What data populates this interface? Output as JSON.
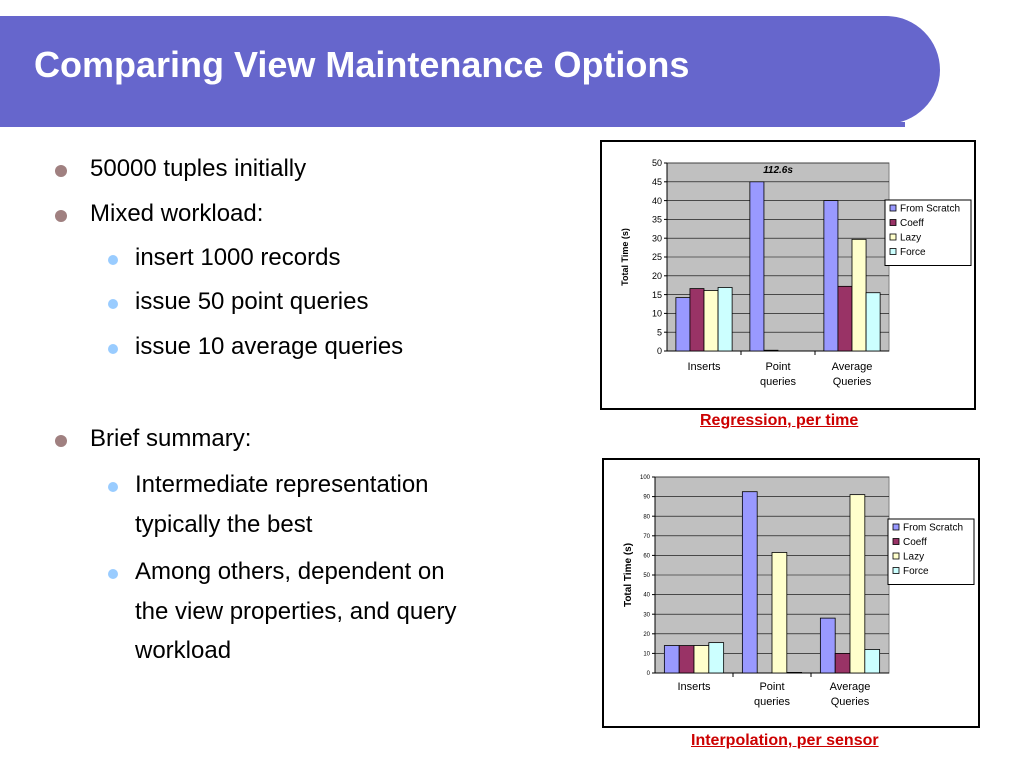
{
  "slide": {
    "title": "Comparing View Maintenance Options",
    "bullets": [
      {
        "level": 1,
        "text": "50000 tuples initially"
      },
      {
        "level": 1,
        "text": "Mixed workload:"
      },
      {
        "level": 2,
        "text": "insert 1000 records"
      },
      {
        "level": 2,
        "text": "issue 50 point queries"
      },
      {
        "level": 2,
        "text": "issue 10 average queries"
      },
      {
        "level": 1,
        "text": "Brief summary:"
      },
      {
        "level": 2,
        "text": "Intermediate representation"
      },
      {
        "level": 2,
        "text": "typically the best",
        "continuation": true
      },
      {
        "level": 2,
        "text": "Among others, dependent on"
      },
      {
        "level": 2,
        "text": "the view properties, and query",
        "continuation": true
      },
      {
        "level": 2,
        "text": "workload",
        "continuation": true
      }
    ],
    "captions": [
      "Regression, per time",
      "Interpolation, per sensor"
    ]
  },
  "chart_data": [
    {
      "type": "bar",
      "title": "",
      "xlabel": "",
      "ylabel": "Total Time (s)",
      "ylim": [
        0,
        50
      ],
      "ytick_step": 5,
      "categories": [
        [
          "Inserts"
        ],
        [
          "Point",
          "queries"
        ],
        [
          "Average",
          "Queries"
        ]
      ],
      "series": [
        {
          "name": "From Scratch",
          "color": "#9999ff",
          "values": [
            14.2,
            45,
            40
          ]
        },
        {
          "name": "Coeff",
          "color": "#993366",
          "values": [
            16.6,
            0.2,
            17.2
          ]
        },
        {
          "name": "Lazy",
          "color": "#ffffcc",
          "values": [
            16.1,
            0,
            29.7
          ]
        },
        {
          "name": "Force",
          "color": "#ccffff",
          "values": [
            16.9,
            0,
            15.5
          ]
        }
      ],
      "annotations": [
        "112.6s"
      ],
      "legend": "right",
      "grid": true,
      "plot_background": "#c0c0c0"
    },
    {
      "type": "bar",
      "title": "",
      "xlabel": "",
      "ylabel": "Total Time (s)",
      "ylim": [
        0,
        100
      ],
      "ytick_step": 10,
      "categories": [
        [
          "Inserts"
        ],
        [
          "Point",
          "queries"
        ],
        [
          "Average",
          "Queries"
        ]
      ],
      "series": [
        {
          "name": "From Scratch",
          "color": "#9999ff",
          "values": [
            14,
            92.5,
            28
          ]
        },
        {
          "name": "Coeff",
          "color": "#993366",
          "values": [
            14,
            0,
            10
          ]
        },
        {
          "name": "Lazy",
          "color": "#ffffcc",
          "values": [
            14,
            61.5,
            91
          ]
        },
        {
          "name": "Force",
          "color": "#ccffff",
          "values": [
            15.5,
            0.3,
            12
          ]
        }
      ],
      "annotations": [],
      "legend": "right",
      "grid": true,
      "plot_background": "#c0c0c0"
    }
  ]
}
